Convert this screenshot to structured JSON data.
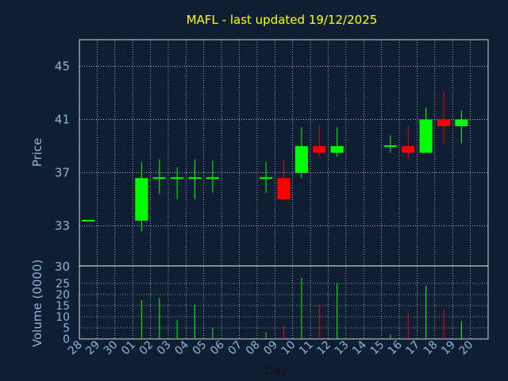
{
  "colors": {
    "background": "#0f1f33",
    "plot_border": "#ffffff",
    "grid": "#ffffff",
    "up": "#00ff00",
    "down": "#ff0000",
    "title": "#ffff00",
    "axis_text": "#8fb4d6"
  },
  "chart_data": {
    "type": "candlestick",
    "title": "MAFL - last updated 19/12/2025",
    "xlabel": "Day",
    "ylabel_price": "Price",
    "ylabel_volume": "Volume (0000)",
    "price_ticks": [
      33,
      37,
      41,
      45
    ],
    "price_top_label": "30",
    "price_range": [
      30,
      47
    ],
    "volume_ticks": [
      0,
      5,
      10,
      15,
      20,
      25
    ],
    "volume_range": [
      0,
      30
    ],
    "days": [
      "28",
      "29",
      "30",
      "01",
      "02",
      "03",
      "04",
      "05",
      "06",
      "07",
      "08",
      "09",
      "10",
      "11",
      "12",
      "13",
      "14",
      "15",
      "16",
      "17",
      "18",
      "19",
      "20"
    ],
    "candles": [
      {
        "day": "28",
        "open": 33.4,
        "high": 33.4,
        "low": 33.4,
        "close": 33.4,
        "volume": 0
      },
      {
        "day": "01",
        "open": 33.4,
        "high": 37.8,
        "low": 32.6,
        "close": 36.6,
        "volume": 17.5
      },
      {
        "day": "02",
        "open": 36.6,
        "high": 38.0,
        "low": 35.4,
        "close": 36.6,
        "volume": 18.5
      },
      {
        "day": "03",
        "open": 36.6,
        "high": 37.4,
        "low": 35.0,
        "close": 36.6,
        "volume": 8.5
      },
      {
        "day": "04",
        "open": 36.6,
        "high": 38.0,
        "low": 35.0,
        "close": 36.6,
        "volume": 15.5
      },
      {
        "day": "05",
        "open": 36.6,
        "high": 37.9,
        "low": 35.5,
        "close": 36.6,
        "volume": 5.0
      },
      {
        "day": "08",
        "open": 36.6,
        "high": 37.8,
        "low": 35.5,
        "close": 36.6,
        "volume": 3.0
      },
      {
        "day": "09",
        "open": 36.6,
        "high": 38.0,
        "low": 35.0,
        "close": 35.0,
        "volume": 6.0
      },
      {
        "day": "10",
        "open": 37.0,
        "high": 40.4,
        "low": 36.6,
        "close": 39.0,
        "volume": 27.5
      },
      {
        "day": "11",
        "open": 39.0,
        "high": 40.6,
        "low": 38.2,
        "close": 38.5,
        "volume": 15.5
      },
      {
        "day": "12",
        "open": 38.5,
        "high": 40.4,
        "low": 38.2,
        "close": 39.0,
        "volume": 25.0
      },
      {
        "day": "15",
        "open": 39.0,
        "high": 39.8,
        "low": 38.5,
        "close": 39.0,
        "volume": 2.0
      },
      {
        "day": "16",
        "open": 39.0,
        "high": 40.5,
        "low": 38.0,
        "close": 38.5,
        "volume": 12.0
      },
      {
        "day": "17",
        "open": 38.5,
        "high": 41.9,
        "low": 38.5,
        "close": 41.0,
        "volume": 24.0
      },
      {
        "day": "18",
        "open": 41.0,
        "high": 43.1,
        "low": 39.2,
        "close": 40.5,
        "volume": 13.0
      },
      {
        "day": "19",
        "open": 40.5,
        "high": 41.7,
        "low": 39.2,
        "close": 41.0,
        "volume": 8.0
      }
    ]
  }
}
